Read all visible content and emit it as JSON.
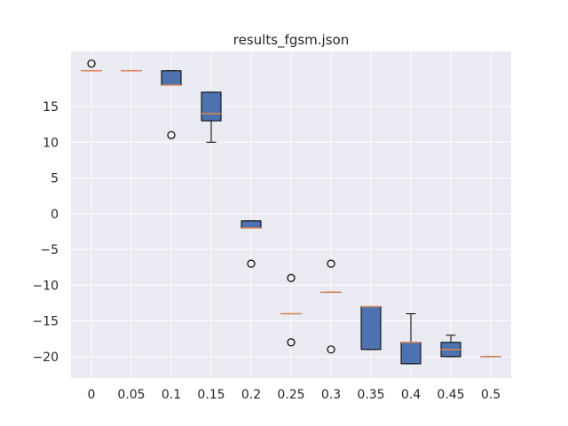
{
  "chart_data": {
    "type": "box",
    "title": "results_fgsm.json",
    "xlabel": "",
    "ylabel": "",
    "categories": [
      "0",
      "0.05",
      "0.1",
      "0.15",
      "0.2",
      "0.25",
      "0.3",
      "0.35",
      "0.4",
      "0.45",
      "0.5"
    ],
    "yticks": [
      15,
      10,
      5,
      0,
      -5,
      -10,
      -15,
      -20
    ],
    "ytick_labels": [
      "15",
      "10",
      "5",
      "0",
      "−5",
      "−10",
      "−15",
      "−20"
    ],
    "ylim": [
      -23.0,
      22.7
    ],
    "grid": true,
    "boxes": [
      {
        "whislo": 20,
        "q1": 20,
        "med": 20,
        "q3": 20,
        "whishi": 20,
        "fliers": [
          21
        ]
      },
      {
        "whislo": 20,
        "q1": 20,
        "med": 20,
        "q3": 20,
        "whishi": 20,
        "fliers": []
      },
      {
        "whislo": 18,
        "q1": 18,
        "med": 18,
        "q3": 20,
        "whishi": 20,
        "fliers": [
          11
        ]
      },
      {
        "whislo": 10,
        "q1": 13,
        "med": 14,
        "q3": 17,
        "whishi": 17,
        "fliers": []
      },
      {
        "whislo": -2,
        "q1": -2,
        "med": -2,
        "q3": -1,
        "whishi": -1,
        "fliers": [
          -7
        ]
      },
      {
        "whislo": -14,
        "q1": -14,
        "med": -14,
        "q3": -14,
        "whishi": -14,
        "fliers": [
          -9,
          -18
        ]
      },
      {
        "whislo": -11,
        "q1": -11,
        "med": -11,
        "q3": -11,
        "whishi": -11,
        "fliers": [
          -7,
          -19
        ]
      },
      {
        "whislo": -19,
        "q1": -19,
        "med": -13,
        "q3": -13,
        "whishi": -13,
        "fliers": []
      },
      {
        "whislo": -21,
        "q1": -21,
        "med": -18,
        "q3": -18,
        "whishi": -14,
        "fliers": []
      },
      {
        "whislo": -20,
        "q1": -20,
        "med": -19,
        "q3": -18,
        "whishi": -17,
        "fliers": []
      },
      {
        "whislo": -20,
        "q1": -20,
        "med": -20,
        "q3": -20,
        "whishi": -20,
        "fliers": []
      }
    ],
    "colors": {
      "axes_bg": "#eaeaf2",
      "grid": "#ffffff",
      "box_fill": "#4c72b0",
      "box_edge": "#000000",
      "median": "#dd8452",
      "flier_edge": "#000000"
    }
  }
}
